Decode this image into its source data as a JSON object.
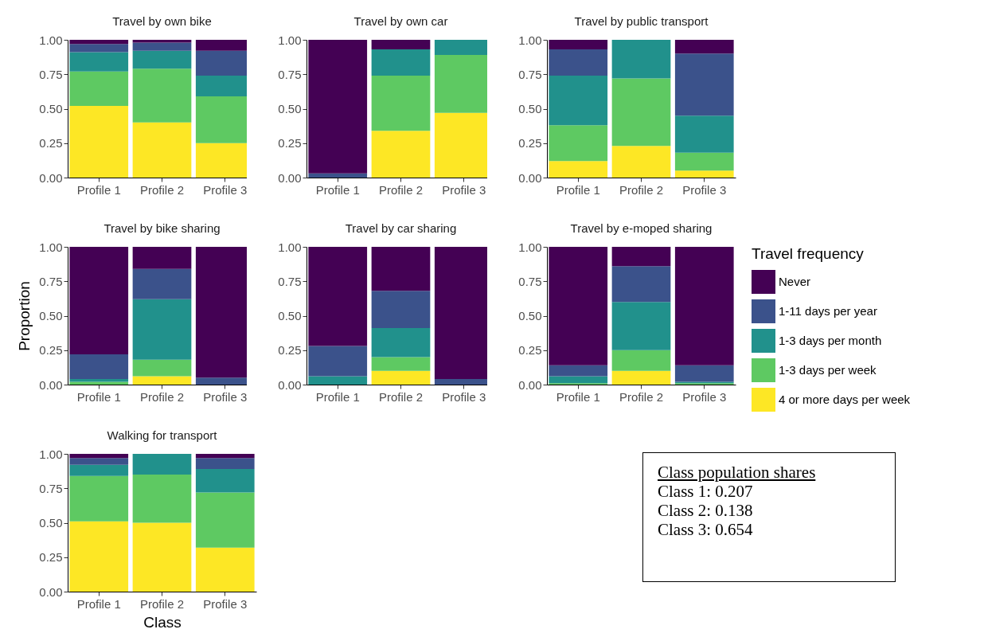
{
  "chart_data": [
    {
      "type": "bar",
      "title": "Travel by own bike",
      "categories": [
        "Profile 1",
        "Profile 2",
        "Profile 3"
      ],
      "stacked": true,
      "ylim": [
        0,
        1
      ],
      "yticks": [
        {
          "value": 0,
          "label": "0.00"
        },
        {
          "value": 0.25,
          "label": "0.25"
        },
        {
          "value": 0.5,
          "label": "0.50"
        },
        {
          "value": 0.75,
          "label": "0.75"
        },
        {
          "value": 1,
          "label": "1.00"
        }
      ],
      "series": [
        {
          "color": "#fde725",
          "values": [
            0.52,
            0.4,
            0.25
          ]
        },
        {
          "color": "#5ec962",
          "values": [
            0.25,
            0.39,
            0.34
          ]
        },
        {
          "color": "#21918c",
          "values": [
            0.14,
            0.13,
            0.15
          ]
        },
        {
          "color": "#3b528b",
          "values": [
            0.06,
            0.06,
            0.18
          ]
        },
        {
          "color": "#440154",
          "values": [
            0.03,
            0.02,
            0.08
          ]
        }
      ]
    },
    {
      "type": "bar",
      "title": "Travel by own car",
      "categories": [
        "Profile 1",
        "Profile 2",
        "Profile 3"
      ],
      "stacked": true,
      "ylim": [
        0,
        1
      ],
      "yticks": [
        {
          "value": 0,
          "label": "0.00"
        },
        {
          "value": 0.25,
          "label": "0.25"
        },
        {
          "value": 0.5,
          "label": "0.50"
        },
        {
          "value": 0.75,
          "label": "0.75"
        },
        {
          "value": 1,
          "label": "1.00"
        }
      ],
      "series": [
        {
          "color": "#fde725",
          "values": [
            0,
            0.34,
            0.47
          ]
        },
        {
          "color": "#5ec962",
          "values": [
            0,
            0.4,
            0.42
          ]
        },
        {
          "color": "#21918c",
          "values": [
            0,
            0.19,
            0.11
          ]
        },
        {
          "color": "#3b528b",
          "values": [
            0.03,
            0,
            0
          ]
        },
        {
          "color": "#440154",
          "values": [
            0.97,
            0.07,
            0
          ]
        }
      ]
    },
    {
      "type": "bar",
      "title": "Travel by public transport",
      "categories": [
        "Profile 1",
        "Profile 2",
        "Profile 3"
      ],
      "stacked": true,
      "ylim": [
        0,
        1
      ],
      "yticks": [
        {
          "value": 0,
          "label": "0.00"
        },
        {
          "value": 0.25,
          "label": "0.25"
        },
        {
          "value": 0.5,
          "label": "0.50"
        },
        {
          "value": 0.75,
          "label": "0.75"
        },
        {
          "value": 1,
          "label": "1.00"
        }
      ],
      "series": [
        {
          "color": "#fde725",
          "values": [
            0.12,
            0.23,
            0.05
          ]
        },
        {
          "color": "#5ec962",
          "values": [
            0.26,
            0.49,
            0.13
          ]
        },
        {
          "color": "#21918c",
          "values": [
            0.36,
            0.28,
            0.27
          ]
        },
        {
          "color": "#3b528b",
          "values": [
            0.19,
            0,
            0.45
          ]
        },
        {
          "color": "#440154",
          "values": [
            0.07,
            0,
            0.1
          ]
        }
      ]
    },
    {
      "type": "bar",
      "title": "Travel by bike sharing",
      "ylabel": "Proportion",
      "categories": [
        "Profile 1",
        "Profile 2",
        "Profile 3"
      ],
      "stacked": true,
      "ylim": [
        0,
        1
      ],
      "yticks": [
        {
          "value": 0,
          "label": "0.00"
        },
        {
          "value": 0.25,
          "label": "0.25"
        },
        {
          "value": 0.5,
          "label": "0.50"
        },
        {
          "value": 0.75,
          "label": "0.75"
        },
        {
          "value": 1,
          "label": "1.00"
        }
      ],
      "series": [
        {
          "color": "#fde725",
          "values": [
            0,
            0.06,
            0
          ]
        },
        {
          "color": "#5ec962",
          "values": [
            0.02,
            0.12,
            0
          ]
        },
        {
          "color": "#21918c",
          "values": [
            0.02,
            0.44,
            0
          ]
        },
        {
          "color": "#3b528b",
          "values": [
            0.18,
            0.22,
            0.05
          ]
        },
        {
          "color": "#440154",
          "values": [
            0.78,
            0.16,
            0.95
          ]
        }
      ]
    },
    {
      "type": "bar",
      "title": "Travel by car sharing",
      "categories": [
        "Profile 1",
        "Profile 2",
        "Profile 3"
      ],
      "stacked": true,
      "ylim": [
        0,
        1
      ],
      "yticks": [
        {
          "value": 0,
          "label": "0.00"
        },
        {
          "value": 0.25,
          "label": "0.25"
        },
        {
          "value": 0.5,
          "label": "0.50"
        },
        {
          "value": 0.75,
          "label": "0.75"
        },
        {
          "value": 1,
          "label": "1.00"
        }
      ],
      "series": [
        {
          "color": "#fde725",
          "values": [
            0,
            0.1,
            0
          ]
        },
        {
          "color": "#5ec962",
          "values": [
            0,
            0.1,
            0
          ]
        },
        {
          "color": "#21918c",
          "values": [
            0.06,
            0.21,
            0
          ]
        },
        {
          "color": "#3b528b",
          "values": [
            0.22,
            0.27,
            0.04
          ]
        },
        {
          "color": "#440154",
          "values": [
            0.72,
            0.32,
            0.96
          ]
        }
      ]
    },
    {
      "type": "bar",
      "title": "Travel by e-moped sharing",
      "legend_title": "Travel frequency",
      "legend": "right",
      "categories": [
        "Profile 1",
        "Profile 2",
        "Profile 3"
      ],
      "stacked": true,
      "ylim": [
        0,
        1
      ],
      "yticks": [
        {
          "value": 0,
          "label": "0.00"
        },
        {
          "value": 0.25,
          "label": "0.25"
        },
        {
          "value": 0.5,
          "label": "0.50"
        },
        {
          "value": 0.75,
          "label": "0.75"
        },
        {
          "value": 1,
          "label": "1.00"
        }
      ],
      "series": [
        {
          "name": "4 or more days per week",
          "color": "#fde725",
          "values": [
            0,
            0.1,
            0
          ]
        },
        {
          "name": "1-3 days per week",
          "color": "#5ec962",
          "values": [
            0.01,
            0.15,
            0.01
          ]
        },
        {
          "name": "1-3 days per month",
          "color": "#21918c",
          "values": [
            0.05,
            0.35,
            0.01
          ]
        },
        {
          "name": "1-11 days per year",
          "color": "#3b528b",
          "values": [
            0.08,
            0.26,
            0.12
          ]
        },
        {
          "name": "Never",
          "color": "#440154",
          "values": [
            0.86,
            0.14,
            0.86
          ]
        }
      ]
    },
    {
      "type": "bar",
      "title": "Walking for transport",
      "xlabel": "Class",
      "categories": [
        "Profile 1",
        "Profile 2",
        "Profile 3"
      ],
      "stacked": true,
      "ylim": [
        0,
        1
      ],
      "yticks": [
        {
          "value": 0,
          "label": "0.00"
        },
        {
          "value": 0.25,
          "label": "0.25"
        },
        {
          "value": 0.5,
          "label": "0.50"
        },
        {
          "value": 0.75,
          "label": "0.75"
        },
        {
          "value": 1,
          "label": "1.00"
        }
      ],
      "series": [
        {
          "color": "#fde725",
          "values": [
            0.51,
            0.5,
            0.32
          ]
        },
        {
          "color": "#5ec962",
          "values": [
            0.33,
            0.35,
            0.4
          ]
        },
        {
          "color": "#21918c",
          "values": [
            0.08,
            0.15,
            0.17
          ]
        },
        {
          "color": "#3b528b",
          "values": [
            0.05,
            0,
            0.08
          ]
        },
        {
          "color": "#440154",
          "values": [
            0.03,
            0,
            0.03
          ]
        }
      ]
    },
    {
      "type": "other",
      "title": "Class population shares",
      "annotations": [
        "Class 1: 0.207",
        "Class 2: 0.138",
        "Class 3: 0.654"
      ]
    }
  ]
}
